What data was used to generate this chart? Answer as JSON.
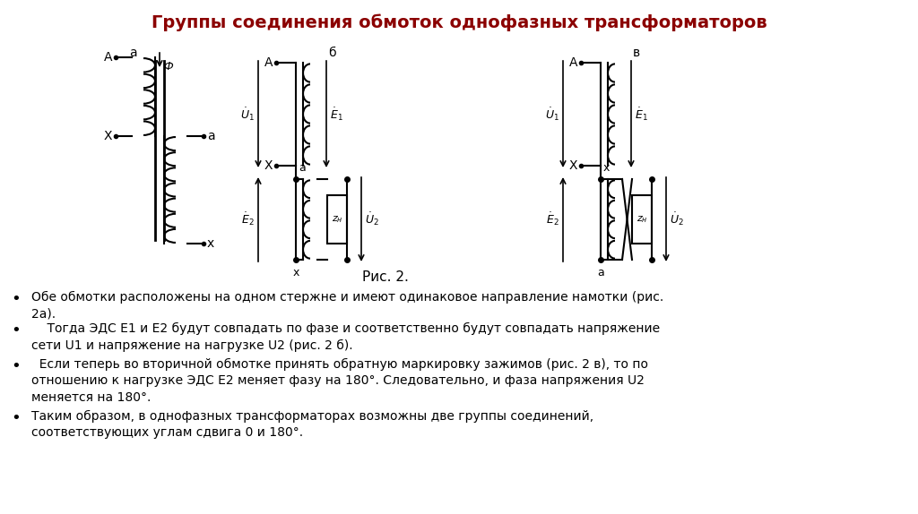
{
  "title": "Группы соединения обмоток однофазных трансформаторов",
  "title_color": "#8B0000",
  "title_fontsize": 14,
  "bg_color": "#FFFFFF",
  "fig_caption": "Рис. 2.",
  "bullet_texts": [
    "Обе обмотки расположены на одном стержне и имеют одинаковое направление намотки (рис.\n2а).",
    "    Тогда ЭДС E1 и E2 будут совпадать по фазе и соответственно будут совпадать напряжение\nсети U1 и напряжение на нагрузке U2 (рис. 2 б).",
    "  Если теперь во вторичной обмотке принять обратную маркировку зажимов (рис. 2 в), то по\nотношению к нагрузке ЭДС E2 меняет фазу на 180°. Следовательно, и фаза напряжения U2\nменяется на 180°.",
    "Таким образом, в однофазных трансформаторах возможны две группы соединений,\nсоответствующих углам сдвига 0 и 180°."
  ]
}
